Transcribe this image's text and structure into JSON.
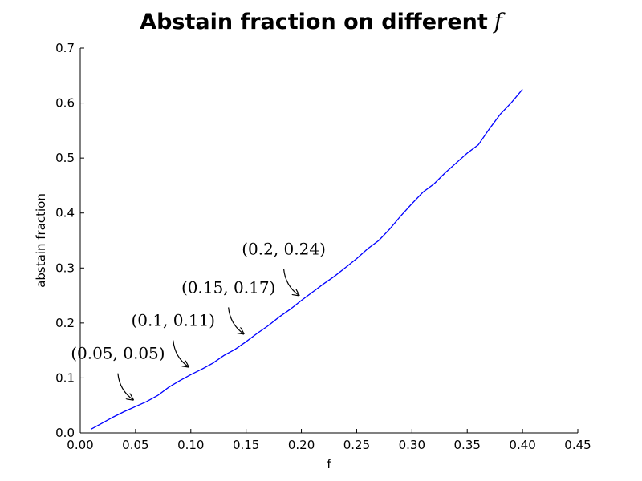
{
  "chart_data": {
    "type": "line",
    "title": "Abstain fraction on different",
    "title_math": "f",
    "xlabel": "f",
    "ylabel": "abstain fraction",
    "xlim": [
      0.0,
      0.45
    ],
    "ylim": [
      0.0,
      0.7
    ],
    "xticks": [
      "0.00",
      "0.05",
      "0.10",
      "0.15",
      "0.20",
      "0.25",
      "0.30",
      "0.35",
      "0.40",
      "0.45"
    ],
    "yticks": [
      "0.0",
      "0.1",
      "0.2",
      "0.3",
      "0.4",
      "0.5",
      "0.6",
      "0.7"
    ],
    "grid": false,
    "line_color": "#0000ff",
    "series": [
      {
        "name": "abstain fraction",
        "x": [
          0.01,
          0.02,
          0.03,
          0.04,
          0.05,
          0.06,
          0.07,
          0.08,
          0.09,
          0.1,
          0.11,
          0.12,
          0.13,
          0.14,
          0.15,
          0.16,
          0.17,
          0.18,
          0.19,
          0.2,
          0.21,
          0.22,
          0.23,
          0.24,
          0.25,
          0.26,
          0.27,
          0.28,
          0.29,
          0.3,
          0.31,
          0.32,
          0.33,
          0.34,
          0.35,
          0.36,
          0.37,
          0.38,
          0.39,
          0.4
        ],
        "y": [
          0.007,
          0.018,
          0.029,
          0.039,
          0.048,
          0.057,
          0.068,
          0.083,
          0.095,
          0.106,
          0.116,
          0.127,
          0.141,
          0.152,
          0.166,
          0.181,
          0.195,
          0.211,
          0.225,
          0.241,
          0.256,
          0.271,
          0.285,
          0.301,
          0.317,
          0.335,
          0.35,
          0.371,
          0.395,
          0.417,
          0.438,
          0.453,
          0.473,
          0.491,
          0.509,
          0.524,
          0.553,
          0.58,
          0.601,
          0.625
        ]
      }
    ],
    "annotations": [
      {
        "text": "(0.05, 0.05)",
        "x": 0.05,
        "y": 0.05
      },
      {
        "text": "(0.1, 0.11)",
        "x": 0.1,
        "y": 0.11
      },
      {
        "text": "(0.15, 0.17)",
        "x": 0.15,
        "y": 0.17
      },
      {
        "text": "(0.2, 0.24)",
        "x": 0.2,
        "y": 0.24
      }
    ]
  }
}
